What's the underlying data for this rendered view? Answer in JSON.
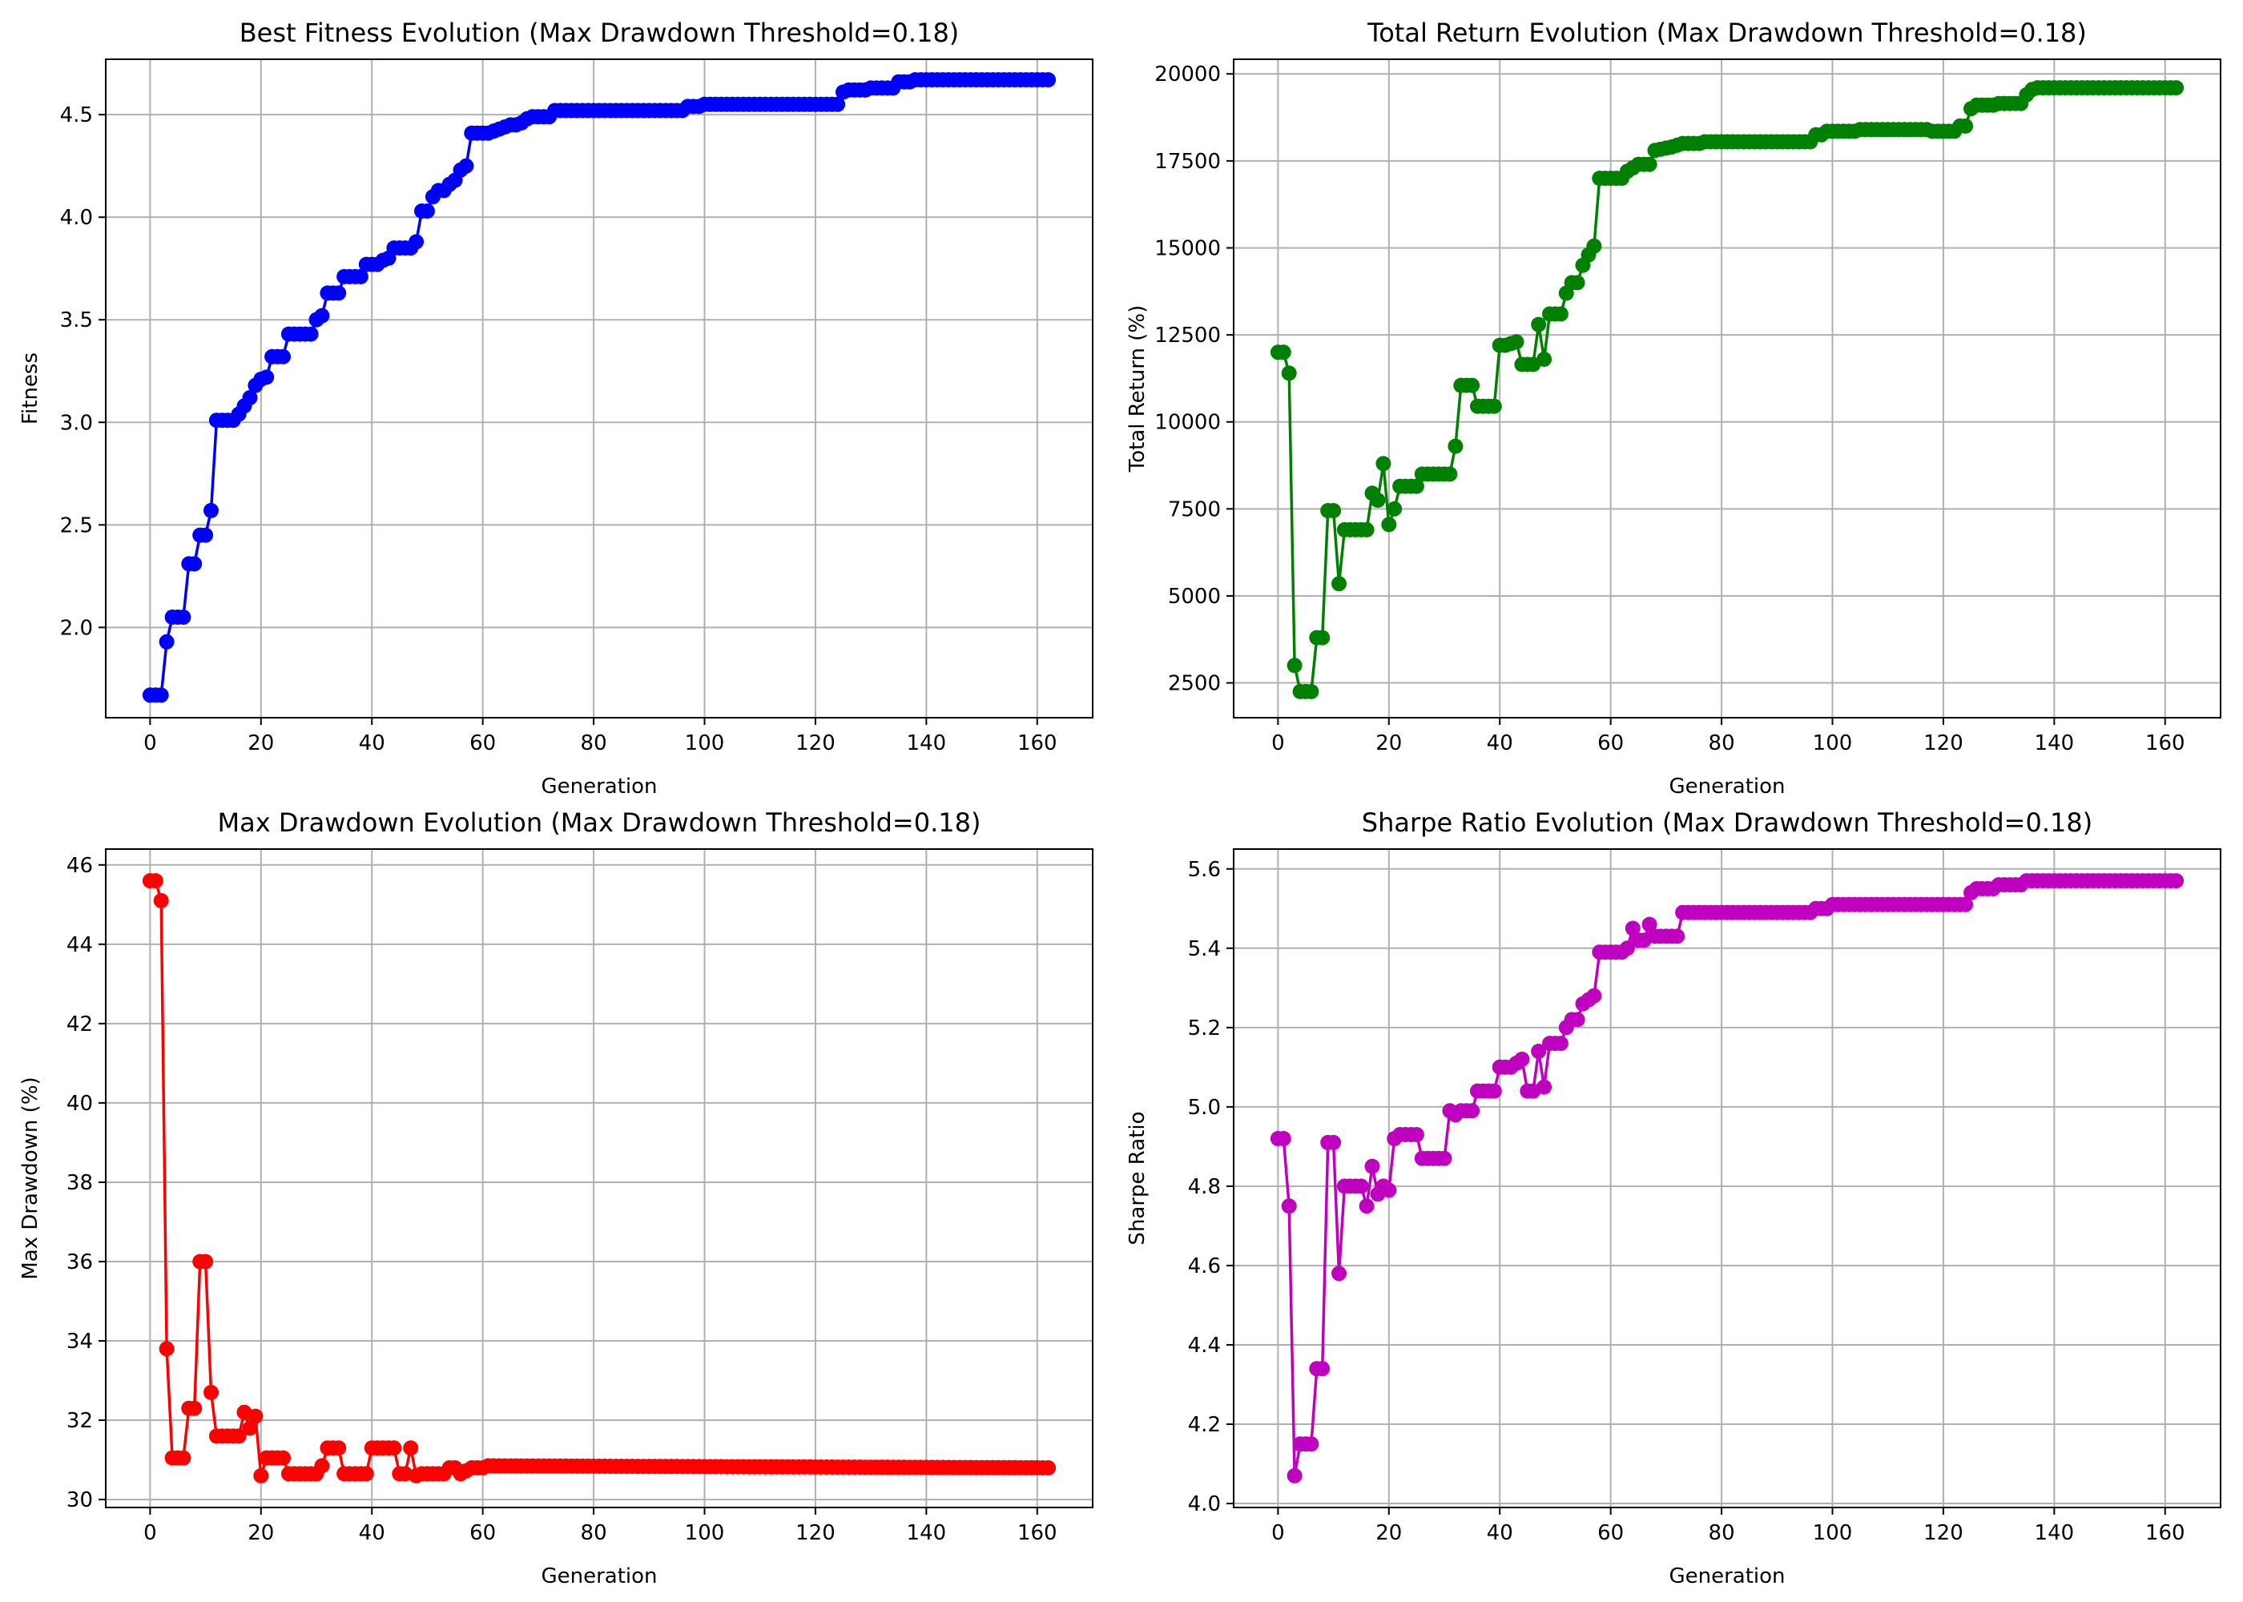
{
  "chart_data": [
    {
      "type": "line",
      "title": "Best Fitness Evolution (Max Drawdown Threshold=0.18)",
      "xlabel": "Generation",
      "ylabel": "Fitness",
      "color": "#0000ff",
      "grid": true,
      "xlim": [
        -8,
        170
      ],
      "ylim": [
        1.56,
        4.77
      ],
      "xticks": [
        0,
        20,
        40,
        60,
        80,
        100,
        120,
        140,
        160
      ],
      "yticks": [
        2.0,
        2.5,
        3.0,
        3.5,
        4.0,
        4.5
      ],
      "ytick_labels": [
        "2.0",
        "2.5",
        "3.0",
        "3.5",
        "4.0",
        "4.5"
      ],
      "points": [
        [
          0,
          1.67
        ],
        [
          2,
          1.67
        ],
        [
          3,
          1.93
        ],
        [
          4,
          2.05
        ],
        [
          6,
          2.05
        ],
        [
          7,
          2.31
        ],
        [
          8,
          2.31
        ],
        [
          9,
          2.45
        ],
        [
          10,
          2.45
        ],
        [
          11,
          2.57
        ],
        [
          12,
          3.01
        ],
        [
          15,
          3.01
        ],
        [
          16,
          3.04
        ],
        [
          17,
          3.08
        ],
        [
          18,
          3.12
        ],
        [
          19,
          3.18
        ],
        [
          20,
          3.21
        ],
        [
          21,
          3.22
        ],
        [
          22,
          3.32
        ],
        [
          24,
          3.32
        ],
        [
          25,
          3.43
        ],
        [
          29,
          3.43
        ],
        [
          30,
          3.5
        ],
        [
          31,
          3.52
        ],
        [
          32,
          3.63
        ],
        [
          34,
          3.63
        ],
        [
          35,
          3.71
        ],
        [
          38,
          3.71
        ],
        [
          39,
          3.77
        ],
        [
          41,
          3.77
        ],
        [
          42,
          3.79
        ],
        [
          43,
          3.8
        ],
        [
          44,
          3.85
        ],
        [
          47,
          3.85
        ],
        [
          48,
          3.88
        ],
        [
          49,
          4.03
        ],
        [
          50,
          4.03
        ],
        [
          51,
          4.1
        ],
        [
          52,
          4.13
        ],
        [
          53,
          4.13
        ],
        [
          54,
          4.16
        ],
        [
          55,
          4.18
        ],
        [
          56,
          4.23
        ],
        [
          57,
          4.25
        ],
        [
          58,
          4.41
        ],
        [
          61,
          4.41
        ],
        [
          62,
          4.42
        ],
        [
          63,
          4.43
        ],
        [
          64,
          4.44
        ],
        [
          65,
          4.45
        ],
        [
          66,
          4.45
        ],
        [
          67,
          4.46
        ],
        [
          68,
          4.48
        ],
        [
          69,
          4.49
        ],
        [
          72,
          4.49
        ],
        [
          73,
          4.52
        ],
        [
          96,
          4.52
        ],
        [
          97,
          4.54
        ],
        [
          99,
          4.54
        ],
        [
          100,
          4.55
        ],
        [
          124,
          4.55
        ],
        [
          125,
          4.61
        ],
        [
          126,
          4.62
        ],
        [
          129,
          4.62
        ],
        [
          130,
          4.63
        ],
        [
          134,
          4.63
        ],
        [
          135,
          4.66
        ],
        [
          136,
          4.66
        ],
        [
          137,
          4.66
        ],
        [
          138,
          4.67
        ],
        [
          162,
          4.67
        ]
      ]
    },
    {
      "type": "line",
      "title": "Total Return Evolution (Max Drawdown Threshold=0.18)",
      "xlabel": "Generation",
      "ylabel": "Total Return (%)",
      "color": "#008000",
      "grid": true,
      "xlim": [
        -8,
        170
      ],
      "ylim": [
        1500,
        20420
      ],
      "xticks": [
        0,
        20,
        40,
        60,
        80,
        100,
        120,
        140,
        160
      ],
      "yticks": [
        2500,
        5000,
        7500,
        10000,
        12500,
        15000,
        17500,
        20000
      ],
      "ytick_labels": [
        "2500",
        "5000",
        "7500",
        "10000",
        "12500",
        "15000",
        "17500",
        "20000"
      ],
      "points": [
        [
          0,
          12000
        ],
        [
          1,
          12000
        ],
        [
          2,
          11400
        ],
        [
          3,
          3000
        ],
        [
          4,
          2250
        ],
        [
          6,
          2250
        ],
        [
          7,
          3800
        ],
        [
          8,
          3800
        ],
        [
          9,
          7450
        ],
        [
          10,
          7450
        ],
        [
          11,
          5350
        ],
        [
          12,
          6900
        ],
        [
          16,
          6900
        ],
        [
          17,
          7950
        ],
        [
          18,
          7750
        ],
        [
          19,
          8800
        ],
        [
          20,
          7050
        ],
        [
          21,
          7500
        ],
        [
          22,
          8150
        ],
        [
          25,
          8150
        ],
        [
          26,
          8500
        ],
        [
          31,
          8500
        ],
        [
          32,
          9300
        ],
        [
          33,
          11050
        ],
        [
          35,
          11050
        ],
        [
          36,
          10450
        ],
        [
          39,
          10450
        ],
        [
          40,
          12200
        ],
        [
          41,
          12200
        ],
        [
          42,
          12250
        ],
        [
          43,
          12300
        ],
        [
          44,
          11650
        ],
        [
          46,
          11650
        ],
        [
          47,
          12800
        ],
        [
          48,
          11800
        ],
        [
          49,
          13100
        ],
        [
          51,
          13100
        ],
        [
          52,
          13700
        ],
        [
          53,
          14000
        ],
        [
          54,
          14000
        ],
        [
          55,
          14500
        ],
        [
          56,
          14800
        ],
        [
          57,
          15050
        ],
        [
          58,
          17000
        ],
        [
          62,
          17000
        ],
        [
          63,
          17200
        ],
        [
          64,
          17300
        ],
        [
          65,
          17400
        ],
        [
          67,
          17400
        ],
        [
          68,
          17800
        ],
        [
          71,
          17900
        ],
        [
          72,
          17950
        ],
        [
          73,
          18000
        ],
        [
          76,
          18000
        ],
        [
          77,
          18050
        ],
        [
          96,
          18050
        ],
        [
          97,
          18250
        ],
        [
          98,
          18250
        ],
        [
          99,
          18350
        ],
        [
          104,
          18350
        ],
        [
          105,
          18400
        ],
        [
          117,
          18400
        ],
        [
          118,
          18350
        ],
        [
          122,
          18350
        ],
        [
          123,
          18500
        ],
        [
          124,
          18500
        ],
        [
          125,
          19000
        ],
        [
          126,
          19100
        ],
        [
          129,
          19100
        ],
        [
          130,
          19150
        ],
        [
          134,
          19150
        ],
        [
          135,
          19400
        ],
        [
          136,
          19550
        ],
        [
          137,
          19600
        ],
        [
          162,
          19600
        ]
      ]
    },
    {
      "type": "line",
      "title": "Max Drawdown Evolution (Max Drawdown Threshold=0.18)",
      "xlabel": "Generation",
      "ylabel": "Max Drawdown (%)",
      "color": "#ff0000",
      "grid": true,
      "xlim": [
        -8,
        170
      ],
      "ylim": [
        29.8,
        46.4
      ],
      "xticks": [
        0,
        20,
        40,
        60,
        80,
        100,
        120,
        140,
        160
      ],
      "yticks": [
        30,
        32,
        34,
        36,
        38,
        40,
        42,
        44,
        46
      ],
      "ytick_labels": [
        "30",
        "32",
        "34",
        "36",
        "38",
        "40",
        "42",
        "44",
        "46"
      ],
      "points": [
        [
          0,
          45.6
        ],
        [
          1,
          45.6
        ],
        [
          2,
          45.1
        ],
        [
          3,
          33.8
        ],
        [
          4,
          31.05
        ],
        [
          6,
          31.05
        ],
        [
          7,
          32.3
        ],
        [
          8,
          32.3
        ],
        [
          9,
          36.0
        ],
        [
          10,
          36.0
        ],
        [
          11,
          32.7
        ],
        [
          12,
          31.6
        ],
        [
          16,
          31.6
        ],
        [
          17,
          32.2
        ],
        [
          18,
          31.8
        ],
        [
          19,
          32.1
        ],
        [
          20,
          30.6
        ],
        [
          21,
          31.05
        ],
        [
          24,
          31.05
        ],
        [
          25,
          30.65
        ],
        [
          30,
          30.65
        ],
        [
          31,
          30.85
        ],
        [
          32,
          31.3
        ],
        [
          34,
          31.3
        ],
        [
          35,
          30.65
        ],
        [
          39,
          30.65
        ],
        [
          40,
          31.3
        ],
        [
          44,
          31.3
        ],
        [
          45,
          30.65
        ],
        [
          46,
          30.65
        ],
        [
          47,
          31.3
        ],
        [
          48,
          30.6
        ],
        [
          49,
          30.65
        ],
        [
          53,
          30.65
        ],
        [
          54,
          30.8
        ],
        [
          55,
          30.8
        ],
        [
          56,
          30.65
        ],
        [
          58,
          30.8
        ],
        [
          60,
          30.8
        ],
        [
          61,
          30.85
        ],
        [
          162,
          30.8
        ]
      ]
    },
    {
      "type": "line",
      "title": "Sharpe Ratio Evolution (Max Drawdown Threshold=0.18)",
      "xlabel": "Generation",
      "ylabel": "Sharpe Ratio",
      "color": "#bf00bf",
      "grid": true,
      "xlim": [
        -8,
        170
      ],
      "ylim": [
        3.99,
        5.65
      ],
      "xticks": [
        0,
        20,
        40,
        60,
        80,
        100,
        120,
        140,
        160
      ],
      "yticks": [
        4.0,
        4.2,
        4.4,
        4.6,
        4.8,
        5.0,
        5.2,
        5.4,
        5.6
      ],
      "ytick_labels": [
        "4.0",
        "4.2",
        "4.4",
        "4.6",
        "4.8",
        "5.0",
        "5.2",
        "5.4",
        "5.6"
      ],
      "points": [
        [
          0,
          4.92
        ],
        [
          1,
          4.92
        ],
        [
          2,
          4.75
        ],
        [
          3,
          4.07
        ],
        [
          4,
          4.15
        ],
        [
          6,
          4.15
        ],
        [
          7,
          4.34
        ],
        [
          8,
          4.34
        ],
        [
          9,
          4.91
        ],
        [
          10,
          4.91
        ],
        [
          11,
          4.58
        ],
        [
          12,
          4.8
        ],
        [
          15,
          4.8
        ],
        [
          16,
          4.75
        ],
        [
          17,
          4.85
        ],
        [
          18,
          4.78
        ],
        [
          19,
          4.8
        ],
        [
          20,
          4.79
        ],
        [
          21,
          4.92
        ],
        [
          22,
          4.93
        ],
        [
          25,
          4.93
        ],
        [
          26,
          4.87
        ],
        [
          30,
          4.87
        ],
        [
          31,
          4.99
        ],
        [
          32,
          4.98
        ],
        [
          33,
          4.99
        ],
        [
          35,
          4.99
        ],
        [
          36,
          5.04
        ],
        [
          39,
          5.04
        ],
        [
          40,
          5.1
        ],
        [
          42,
          5.1
        ],
        [
          43,
          5.11
        ],
        [
          44,
          5.12
        ],
        [
          45,
          5.04
        ],
        [
          46,
          5.04
        ],
        [
          47,
          5.14
        ],
        [
          48,
          5.05
        ],
        [
          49,
          5.16
        ],
        [
          51,
          5.16
        ],
        [
          52,
          5.2
        ],
        [
          53,
          5.22
        ],
        [
          54,
          5.22
        ],
        [
          55,
          5.26
        ],
        [
          56,
          5.27
        ],
        [
          57,
          5.28
        ],
        [
          58,
          5.39
        ],
        [
          62,
          5.39
        ],
        [
          63,
          5.4
        ],
        [
          64,
          5.45
        ],
        [
          65,
          5.42
        ],
        [
          66,
          5.42
        ],
        [
          67,
          5.46
        ],
        [
          68,
          5.43
        ],
        [
          72,
          5.43
        ],
        [
          73,
          5.49
        ],
        [
          96,
          5.49
        ],
        [
          97,
          5.5
        ],
        [
          99,
          5.5
        ],
        [
          100,
          5.51
        ],
        [
          124,
          5.51
        ],
        [
          125,
          5.54
        ],
        [
          126,
          5.55
        ],
        [
          129,
          5.55
        ],
        [
          130,
          5.56
        ],
        [
          134,
          5.56
        ],
        [
          135,
          5.57
        ],
        [
          162,
          5.57
        ]
      ]
    }
  ]
}
